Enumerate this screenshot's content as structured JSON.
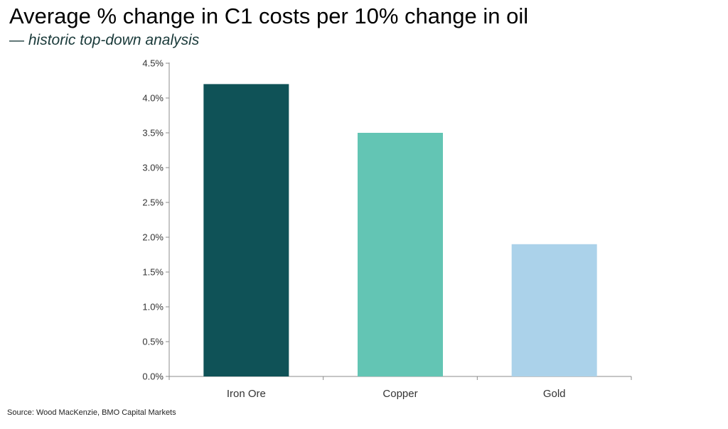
{
  "title": "Average % change in C1 costs per 10% change in oil",
  "subtitle_dash": "—",
  "subtitle": "historic top-down analysis",
  "source": "Source: Wood MacKenzie, BMO Capital Markets",
  "chart_data": {
    "type": "bar",
    "title": "Average % change in C1 costs per 10% change in oil",
    "subtitle": "historic top-down analysis",
    "xlabel": "",
    "ylabel": "",
    "categories": [
      "Iron Ore",
      "Copper",
      "Gold"
    ],
    "values": [
      4.2,
      3.5,
      1.9
    ],
    "bar_colors": [
      "#0f5257",
      "#63c5b4",
      "#abd2ea"
    ],
    "ylim": [
      0,
      4.5
    ],
    "yticks": [
      0.0,
      0.5,
      1.0,
      1.5,
      2.0,
      2.5,
      3.0,
      3.5,
      4.0,
      4.5
    ],
    "ytick_labels": [
      "0.0%",
      "0.5%",
      "1.0%",
      "1.5%",
      "2.0%",
      "2.5%",
      "3.0%",
      "3.5%",
      "4.0%",
      "4.5%"
    ],
    "grid": false,
    "legend": "none"
  }
}
